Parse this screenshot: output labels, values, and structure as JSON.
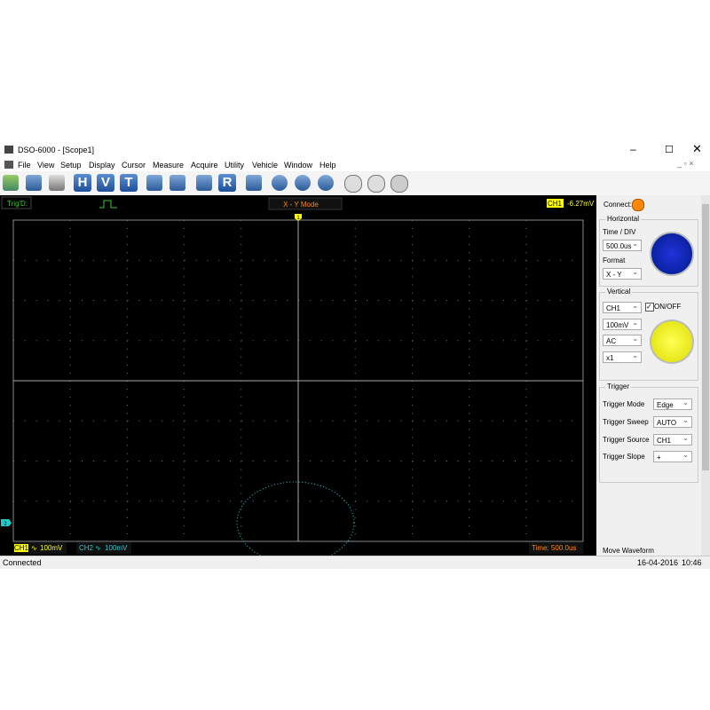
{
  "window": {
    "title": "DSO-6000 - [Scope1]"
  },
  "menu": [
    "File",
    "View",
    "Setup",
    "Display",
    "Cursor",
    "Measure",
    "Acquire",
    "Utility",
    "Vehicle",
    "Window",
    "Help"
  ],
  "toolbar": {
    "h": "H",
    "v": "V",
    "t": "T",
    "r": "R"
  },
  "scope": {
    "trig_status": "Trig'D:",
    "mode": "X - Y Mode",
    "trigger_channel": "CH1",
    "trigger_level": "-6.27mV",
    "marker_top": "1",
    "marker_left": "2",
    "ch1_label": "CH1",
    "ch1_scale": "100mV",
    "ch2_label": "CH2",
    "ch2_scale": "100mV",
    "time": "Time: 500.0us"
  },
  "panel": {
    "connect": "Connect:",
    "horizontal": {
      "title": "Horizontal",
      "time_div_label": "Time / DIV",
      "time_div": "500.0us",
      "format_label": "Format",
      "format": "X - Y"
    },
    "vertical": {
      "title": "Vertical",
      "channel": "CH1",
      "onoff": "ON/OFF",
      "scale": "100mV",
      "coupling": "AC",
      "probe": "x1"
    },
    "trigger": {
      "title": "Trigger",
      "rows": [
        [
          "Trigger Mode",
          "Edge"
        ],
        [
          "Trigger Sweep",
          "AUTO"
        ],
        [
          "Trigger Source",
          "CH1"
        ],
        [
          "Trigger Slope",
          "+"
        ]
      ]
    },
    "move_waveform": "Move Waveform"
  },
  "status": {
    "left": "Connected",
    "date": "16-04-2016",
    "time": "10:46"
  }
}
